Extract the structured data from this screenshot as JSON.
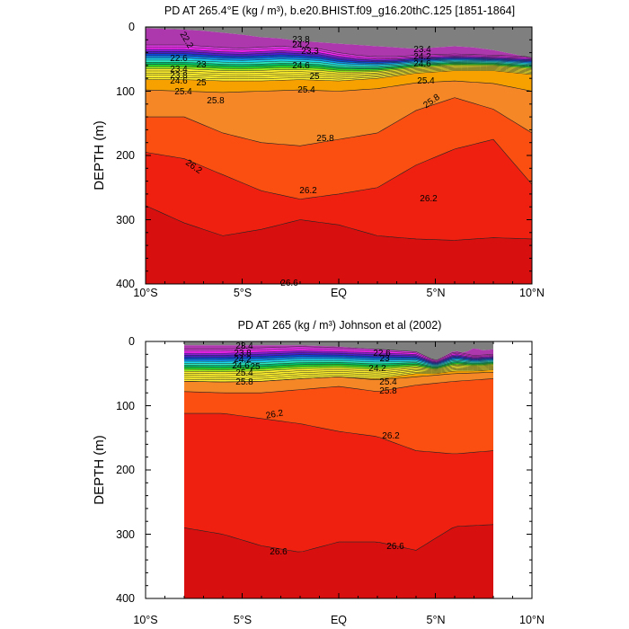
{
  "chart_data": [
    {
      "type": "contour",
      "title": "PD AT 265.4°E (kg / m³), b.e20.BHIST.f09_g16.20thC.125 [1851-1864]",
      "xlabel": "",
      "ylabel": "DEPTH (m)",
      "xlim": [
        -10,
        10
      ],
      "ylim": [
        400,
        0
      ],
      "data_extent": [
        -10,
        10
      ],
      "x_ticks": [
        -10,
        -5,
        0,
        5,
        10
      ],
      "x_tick_labels": [
        "10°S",
        "5°S",
        "EQ",
        "5°N",
        "10°N"
      ],
      "y_ticks": [
        0,
        100,
        200,
        300,
        400
      ],
      "y_tick_labels": [
        "0",
        "100",
        "200",
        "300",
        "400"
      ],
      "contour_levels": [
        21.0,
        21.4,
        21.8,
        22.2,
        22.6,
        23.0,
        23.4,
        23.8,
        24.2,
        24.6,
        25.0,
        25.4,
        25.8,
        26.2,
        26.6,
        27.0
      ],
      "isopycnal_depths": {
        "x": [
          -10,
          -8,
          -6,
          -4,
          -2,
          0,
          2,
          4,
          6,
          8,
          10
        ],
        "26.6": [
          278,
          305,
          325,
          315,
          300,
          308,
          325,
          330,
          332,
          328,
          330
        ],
        "26.2": [
          195,
          205,
          230,
          255,
          268,
          260,
          250,
          215,
          190,
          175,
          245
        ],
        "25.8": [
          140,
          140,
          165,
          180,
          185,
          175,
          165,
          130,
          110,
          128,
          165
        ],
        "25.4": [
          98,
          100,
          102,
          100,
          98,
          100,
          96,
          87,
          84,
          88,
          100
        ],
        "25.0": [
          86,
          86,
          86,
          86,
          84,
          86,
          83,
          76,
          72,
          72,
          78
        ]
      },
      "annotations": [
        "22.6",
        "23",
        "23.4",
        "23.8",
        "23.8",
        "24.2",
        "24.6",
        "24.6",
        "25",
        "25",
        "25.4",
        "25.4",
        "25.4",
        "25.8",
        "25.8",
        "25.8",
        "26.2",
        "26.2",
        "26.2",
        "26.6",
        "22.2",
        "24.2",
        "23.4",
        "24.6"
      ]
    },
    {
      "type": "contour",
      "title": "PD AT 265 (kg / m³) Johnson et al (2002)",
      "xlabel": "",
      "ylabel": "DEPTH (m)",
      "xlim": [
        -10,
        10
      ],
      "ylim": [
        400,
        0
      ],
      "data_extent": [
        -8,
        8
      ],
      "x_ticks": [
        -10,
        -5,
        0,
        5,
        10
      ],
      "x_tick_labels": [
        "10°S",
        "5°S",
        "EQ",
        "5°N",
        "10°N"
      ],
      "y_ticks": [
        0,
        100,
        200,
        300,
        400
      ],
      "y_tick_labels": [
        "0",
        "100",
        "200",
        "300",
        "400"
      ],
      "contour_levels": [
        21.0,
        21.4,
        21.8,
        22.2,
        22.6,
        23.0,
        23.4,
        23.8,
        24.2,
        24.6,
        25.0,
        25.4,
        25.8,
        26.2,
        26.6,
        27.0
      ],
      "isopycnal_depths": {
        "x": [
          -8,
          -6,
          -4,
          -2,
          0,
          2,
          4,
          6,
          8
        ],
        "26.6": [
          290,
          300,
          318,
          328,
          312,
          312,
          325,
          288,
          285
        ],
        "26.2": [
          112,
          112,
          120,
          128,
          140,
          148,
          170,
          175,
          170
        ],
        "25.8": [
          78,
          80,
          80,
          75,
          70,
          78,
          68,
          62,
          58
        ],
        "25.4": [
          62,
          63,
          62,
          58,
          55,
          60,
          55,
          50,
          48
        ]
      },
      "annotations": [
        "23.4",
        "23.8",
        "24.2",
        "24.6",
        "25",
        "25.4",
        "25.8",
        "26.2",
        "26.2",
        "26.6",
        "26.6",
        "22.6",
        "23",
        "24.2",
        "25.4",
        "25.8"
      ]
    }
  ],
  "colors": {
    "palette": [
      "#7f7f7f",
      "#ad37ad",
      "#dc37e2",
      "#ff21ff",
      "#8b1cd5",
      "#4b1fd1",
      "#0a4ad6",
      "#0d8be9",
      "#18d7f0",
      "#2ae9c0",
      "#00c06a",
      "#28d62a",
      "#9af21a",
      "#fff12b",
      "#f6a100",
      "#f68726",
      "#fb4f12",
      "#f02010",
      "#d70f0f"
    ]
  }
}
